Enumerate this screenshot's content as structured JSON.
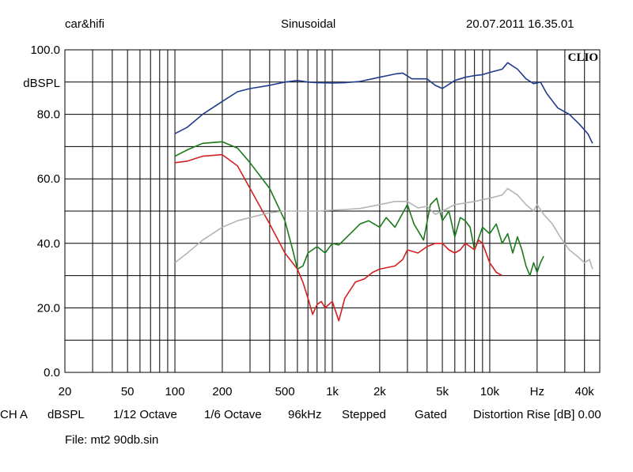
{
  "header": {
    "left": "car&hifi",
    "center": "Sinusoidal",
    "right": "20.07.2011 16.35.01"
  },
  "footer": {
    "channel": "CH A",
    "unit": "dBSPL",
    "smoothing": "1/12 Octave",
    "resolution": "1/6 Octave",
    "rate": "96kHz",
    "mode": "Stepped",
    "window": "Gated",
    "distortion": "Distortion Rise [dB] 0.00",
    "file": "File: mt2 90db.sin"
  },
  "chart_data": {
    "type": "line",
    "logo": "CLIO",
    "ylabel": "dBSPL",
    "xlabel": "Hz",
    "xscale": "log",
    "xlim": [
      20,
      50000
    ],
    "ylim": [
      0,
      100
    ],
    "grid": true,
    "y_ticks": [
      {
        "value": 0,
        "label": "0.0"
      },
      {
        "value": 20,
        "label": "20.0"
      },
      {
        "value": 40,
        "label": "40.0"
      },
      {
        "value": 60,
        "label": "60.0"
      },
      {
        "value": 80,
        "label": "80.0"
      },
      {
        "value": 100,
        "label": "100.0"
      }
    ],
    "x_ticks": [
      {
        "value": 20,
        "label": "20"
      },
      {
        "value": 50,
        "label": "50"
      },
      {
        "value": 100,
        "label": "100"
      },
      {
        "value": 200,
        "label": "200"
      },
      {
        "value": 500,
        "label": "500"
      },
      {
        "value": 1000,
        "label": "1k"
      },
      {
        "value": 2000,
        "label": "2k"
      },
      {
        "value": 5000,
        "label": "5k"
      },
      {
        "value": 10000,
        "label": "10k"
      },
      {
        "value": 20000,
        "label": "Hz"
      },
      {
        "value": 40000,
        "label": "40k"
      }
    ],
    "series": [
      {
        "color": "#1f3c8c",
        "points": [
          [
            100,
            74
          ],
          [
            120,
            76
          ],
          [
            150,
            80
          ],
          [
            200,
            84
          ],
          [
            250,
            87
          ],
          [
            300,
            88
          ],
          [
            400,
            89
          ],
          [
            500,
            90
          ],
          [
            600,
            90.5
          ],
          [
            700,
            90
          ],
          [
            800,
            89.8
          ],
          [
            1000,
            89.7
          ],
          [
            1200,
            89.8
          ],
          [
            1500,
            90.2
          ],
          [
            2000,
            91.5
          ],
          [
            2500,
            92.5
          ],
          [
            2800,
            92.8
          ],
          [
            3200,
            91
          ],
          [
            4000,
            91
          ],
          [
            4500,
            89
          ],
          [
            5000,
            88
          ],
          [
            6000,
            90.5
          ],
          [
            7000,
            91.5
          ],
          [
            8000,
            92
          ],
          [
            9000,
            92.3
          ],
          [
            10000,
            93
          ],
          [
            12000,
            94
          ],
          [
            13000,
            96
          ],
          [
            15000,
            94
          ],
          [
            17000,
            91
          ],
          [
            19000,
            89.5
          ],
          [
            21000,
            90
          ],
          [
            23000,
            86.5
          ],
          [
            27000,
            82
          ],
          [
            32000,
            80
          ],
          [
            37000,
            77
          ],
          [
            42000,
            74
          ],
          [
            45000,
            71
          ]
        ]
      },
      {
        "color": "#1a7a1a",
        "points": [
          [
            100,
            67
          ],
          [
            120,
            69
          ],
          [
            150,
            71
          ],
          [
            200,
            71.5
          ],
          [
            250,
            69.5
          ],
          [
            300,
            65
          ],
          [
            400,
            57
          ],
          [
            500,
            47
          ],
          [
            560,
            38
          ],
          [
            600,
            32
          ],
          [
            650,
            33
          ],
          [
            700,
            37
          ],
          [
            800,
            39
          ],
          [
            900,
            37
          ],
          [
            1000,
            40
          ],
          [
            1100,
            39.5
          ],
          [
            1300,
            43
          ],
          [
            1500,
            46
          ],
          [
            1700,
            47
          ],
          [
            2000,
            45
          ],
          [
            2200,
            48
          ],
          [
            2500,
            45
          ],
          [
            3000,
            52
          ],
          [
            3300,
            46
          ],
          [
            3800,
            41
          ],
          [
            4200,
            52
          ],
          [
            4600,
            54
          ],
          [
            5000,
            47
          ],
          [
            5500,
            50
          ],
          [
            6000,
            42
          ],
          [
            6500,
            48
          ],
          [
            7000,
            47
          ],
          [
            7500,
            45
          ],
          [
            8000,
            38
          ],
          [
            9000,
            45
          ],
          [
            10000,
            43
          ],
          [
            11000,
            46
          ],
          [
            12000,
            40
          ],
          [
            13000,
            43
          ],
          [
            14000,
            37
          ],
          [
            15000,
            42
          ],
          [
            16000,
            38
          ],
          [
            17000,
            33
          ],
          [
            18000,
            30
          ],
          [
            19000,
            34
          ],
          [
            20000,
            31
          ],
          [
            21000,
            34
          ],
          [
            22000,
            36
          ]
        ]
      },
      {
        "color": "#d42020",
        "points": [
          [
            100,
            65
          ],
          [
            120,
            65.5
          ],
          [
            150,
            67
          ],
          [
            200,
            67.5
          ],
          [
            250,
            64
          ],
          [
            300,
            57
          ],
          [
            400,
            46
          ],
          [
            500,
            37
          ],
          [
            600,
            32
          ],
          [
            650,
            28
          ],
          [
            700,
            23
          ],
          [
            750,
            18
          ],
          [
            800,
            21
          ],
          [
            850,
            22
          ],
          [
            900,
            20
          ],
          [
            1000,
            22
          ],
          [
            1100,
            16
          ],
          [
            1200,
            23
          ],
          [
            1400,
            28
          ],
          [
            1600,
            29
          ],
          [
            1800,
            31
          ],
          [
            2000,
            32
          ],
          [
            2500,
            33
          ],
          [
            2800,
            35
          ],
          [
            3000,
            38
          ],
          [
            3500,
            37
          ],
          [
            4000,
            39
          ],
          [
            4500,
            40
          ],
          [
            5000,
            40
          ],
          [
            5500,
            38
          ],
          [
            6000,
            37
          ],
          [
            6500,
            38
          ],
          [
            7000,
            40
          ],
          [
            7500,
            39
          ],
          [
            8000,
            38
          ],
          [
            8500,
            41
          ],
          [
            9000,
            40
          ],
          [
            10000,
            34
          ],
          [
            11000,
            31
          ],
          [
            12000,
            30
          ]
        ]
      },
      {
        "color": "#b4b4b4",
        "points": [
          [
            100,
            34
          ],
          [
            120,
            37
          ],
          [
            150,
            41
          ],
          [
            200,
            45
          ],
          [
            250,
            47
          ],
          [
            300,
            48
          ],
          [
            400,
            49.5
          ],
          [
            500,
            50
          ],
          [
            600,
            50
          ],
          [
            700,
            50
          ],
          [
            800,
            50
          ],
          [
            1000,
            50.3
          ],
          [
            1200,
            50.5
          ],
          [
            1500,
            50.8
          ],
          [
            2000,
            52
          ],
          [
            2500,
            53
          ],
          [
            3000,
            53
          ],
          [
            3500,
            51
          ],
          [
            4000,
            51.5
          ],
          [
            4500,
            49
          ],
          [
            5000,
            50
          ],
          [
            6000,
            52
          ],
          [
            7000,
            52.5
          ],
          [
            8000,
            53
          ],
          [
            10000,
            54
          ],
          [
            12000,
            55
          ],
          [
            13000,
            57
          ],
          [
            15000,
            55
          ],
          [
            17000,
            52
          ],
          [
            19000,
            50
          ],
          [
            20000,
            52
          ],
          [
            22000,
            49
          ],
          [
            25000,
            46
          ],
          [
            28000,
            42
          ],
          [
            32000,
            38
          ],
          [
            36000,
            36
          ],
          [
            40000,
            34
          ],
          [
            43000,
            35
          ],
          [
            45000,
            32
          ]
        ]
      }
    ]
  }
}
